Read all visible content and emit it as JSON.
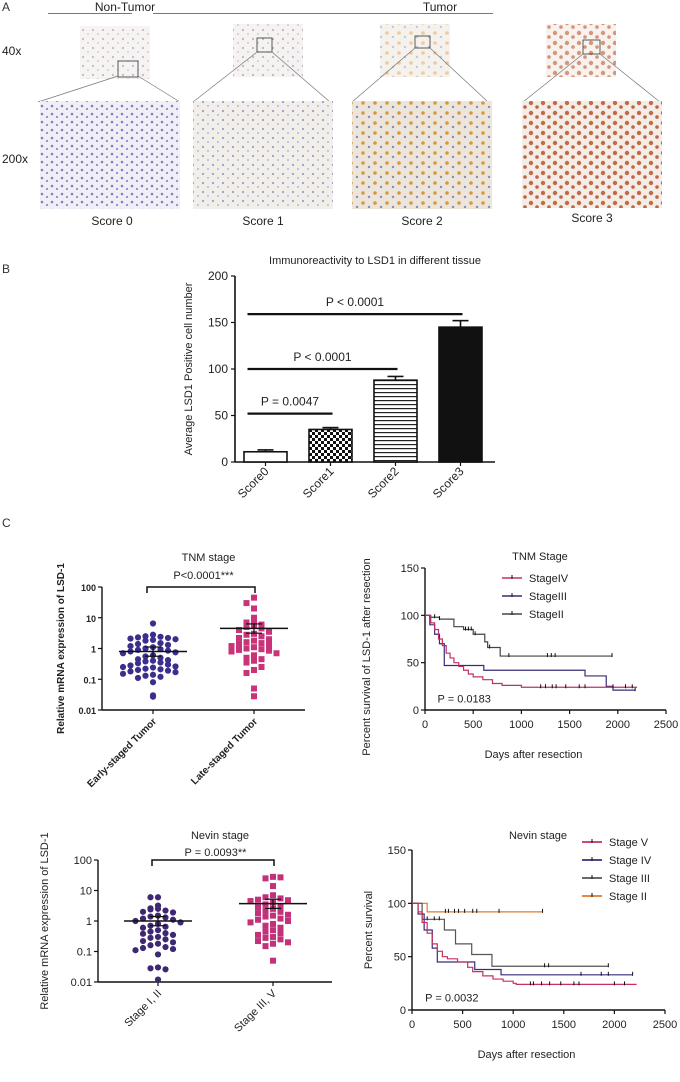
{
  "panel_a": {
    "letter": "A",
    "groups": [
      {
        "label": "Non-Tumor"
      },
      {
        "label": "Tumor"
      }
    ],
    "magnifications": [
      "40x",
      "200x"
    ],
    "scores": [
      {
        "label": "Score 0",
        "stain_color": "#7f80c0",
        "bg": "#eeeaf0"
      },
      {
        "label": "Score 1",
        "stain_color": "#9a9cc8",
        "bg": "#f0ece8"
      },
      {
        "label": "Score 2",
        "stain_color": "#d99a3c",
        "bg": "#ece6de"
      },
      {
        "label": "Score 3",
        "stain_color": "#c2683f",
        "bg": "#f2e8e2"
      }
    ]
  },
  "panel_b": {
    "letter": "B"
  },
  "panel_c": {
    "letter": "C"
  },
  "chart_data": [
    {
      "id": "lsd1-bar",
      "type": "bar",
      "title": "Immunoreactivity to LSD1 in different tissue",
      "xlabel": "",
      "ylabel": "Average LSD1 Positive cell number",
      "categories": [
        "Score0",
        "Score1",
        "Score2",
        "Score3"
      ],
      "values": [
        11,
        35,
        88,
        145
      ],
      "errors": [
        2,
        2,
        4,
        7
      ],
      "patterns": [
        "white",
        "checker",
        "hstripes",
        "solid"
      ],
      "ylim": [
        0,
        200
      ],
      "yticks": [
        0,
        50,
        100,
        150,
        200
      ],
      "significance": [
        {
          "from": 0,
          "to": 1,
          "y": 52,
          "label": "P = 0.0047"
        },
        {
          "from": 0,
          "to": 2,
          "y": 100,
          "label": "P < 0.0001"
        },
        {
          "from": 0,
          "to": 3,
          "y": 159,
          "label": "P < 0.0001"
        }
      ]
    },
    {
      "id": "tnm-scatter",
      "type": "scatter",
      "title": "TNM stage",
      "ylabel": "Relative mRNA expression of LSD-1",
      "yscale": "log",
      "ylim": [
        0.01,
        100
      ],
      "yticks": [
        "0.01",
        "0.1",
        "1",
        "10",
        "100"
      ],
      "categories": [
        "Early-staged Tumor",
        "Late-staged Tumor"
      ],
      "significance": "P<0.0001***",
      "series": [
        {
          "name": "Early-staged Tumor",
          "color": "#3a2f8e",
          "marker": "circle",
          "mean": 0.8,
          "values": [
            6.5,
            2.8,
            2.5,
            2.4,
            2.3,
            2.2,
            2.1,
            2.0,
            1.9,
            1.8,
            1.5,
            1.4,
            1.3,
            1.2,
            1.1,
            1.0,
            0.95,
            0.9,
            0.85,
            0.8,
            0.75,
            0.7,
            0.6,
            0.55,
            0.5,
            0.45,
            0.42,
            0.4,
            0.38,
            0.35,
            0.33,
            0.3,
            0.28,
            0.26,
            0.25,
            0.24,
            0.22,
            0.21,
            0.2,
            0.19,
            0.18,
            0.17,
            0.15,
            0.14,
            0.13,
            0.12,
            0.11,
            0.08,
            0.03,
            0.027
          ]
        },
        {
          "name": "Late-staged Tumor",
          "color": "#c8337a",
          "marker": "square",
          "mean": 4.5,
          "values": [
            45,
            30,
            20,
            10,
            8,
            7,
            6,
            5.5,
            5,
            4.5,
            4,
            3.5,
            3,
            2.8,
            2.5,
            2.2,
            2,
            1.8,
            1.6,
            1.5,
            1.4,
            1.3,
            1.2,
            1.1,
            1,
            0.95,
            0.9,
            0.85,
            0.8,
            0.7,
            0.6,
            0.5,
            0.45,
            0.4,
            0.35,
            0.25,
            0.2,
            0.16,
            0.05,
            0.028
          ]
        }
      ]
    },
    {
      "id": "tnm-survival",
      "type": "line",
      "title": "TNM Stage",
      "xlabel": "Days after resection",
      "ylabel": "Percent survival of LSD-1 after resection",
      "xlim": [
        0,
        2500
      ],
      "xticks": [
        0,
        500,
        1000,
        1500,
        2000,
        2500
      ],
      "ylim": [
        0,
        150
      ],
      "yticks": [
        0,
        50,
        100,
        150
      ],
      "annotation": "P = 0.0183",
      "legend": "top-right",
      "series": [
        {
          "name": "StageIV",
          "color": "#c0306a",
          "points": [
            [
              0,
              100
            ],
            [
              60,
              92
            ],
            [
              100,
              85
            ],
            [
              140,
              75
            ],
            [
              180,
              68
            ],
            [
              220,
              60
            ],
            [
              260,
              55
            ],
            [
              300,
              50
            ],
            [
              350,
              46
            ],
            [
              400,
              42
            ],
            [
              450,
              38
            ],
            [
              500,
              35
            ],
            [
              600,
              32
            ],
            [
              700,
              28
            ],
            [
              800,
              26
            ],
            [
              1000,
              24
            ],
            [
              2200,
              24
            ]
          ],
          "censors": [
            1200,
            1250,
            1320,
            1360,
            1460,
            1600,
            1660,
            1950,
            2080,
            2150
          ]
        },
        {
          "name": "StageIII",
          "color": "#3c2a78",
          "points": [
            [
              0,
              100
            ],
            [
              50,
              90
            ],
            [
              100,
              80
            ],
            [
              150,
              70
            ],
            [
              200,
              47
            ],
            [
              600,
              47
            ],
            [
              610,
              42
            ],
            [
              1650,
              42
            ],
            [
              1660,
              36
            ],
            [
              1870,
              36
            ],
            [
              1880,
              25
            ],
            [
              1940,
              25
            ],
            [
              1950,
              21
            ],
            [
              2180,
              21
            ]
          ],
          "censors": [
            2180
          ]
        },
        {
          "name": "StageII",
          "color": "#444444",
          "points": [
            [
              0,
              100
            ],
            [
              50,
              98
            ],
            [
              150,
              96
            ],
            [
              300,
              88
            ],
            [
              400,
              85
            ],
            [
              500,
              80
            ],
            [
              620,
              72
            ],
            [
              650,
              66
            ],
            [
              780,
              57
            ],
            [
              1940,
              57
            ]
          ],
          "censors": [
            100,
            150,
            420,
            450,
            480,
            520,
            670,
            870,
            1270,
            1310,
            1350,
            1940
          ]
        }
      ]
    },
    {
      "id": "nevin-scatter",
      "type": "scatter",
      "title": "Nevin stage",
      "ylabel": "Relative mRNA expression of LSD-1",
      "yscale": "log",
      "ylim": [
        0.01,
        100
      ],
      "yticks": [
        "0.01",
        "0.1",
        "1",
        "10",
        "100"
      ],
      "categories": [
        "Stage I, II",
        "Stage III, V"
      ],
      "significance": "P = 0.0093**",
      "series": [
        {
          "name": "Stage I, II",
          "color": "#3e2874",
          "marker": "circle",
          "mean": 1.0,
          "values": [
            6,
            6,
            3.2,
            2.6,
            2.5,
            2.4,
            2.2,
            2.0,
            1.9,
            1.5,
            1.4,
            1.3,
            1.2,
            1.1,
            1.0,
            0.9,
            0.8,
            0.7,
            0.65,
            0.6,
            0.5,
            0.45,
            0.4,
            0.38,
            0.35,
            0.3,
            0.28,
            0.25,
            0.22,
            0.2,
            0.18,
            0.16,
            0.14,
            0.13,
            0.12,
            0.11,
            0.08,
            0.03,
            0.028,
            0.026,
            0.012
          ]
        },
        {
          "name": "Stage III, V",
          "color": "#c2327a",
          "marker": "square",
          "mean": 3.7,
          "values": [
            28,
            25,
            27,
            14,
            7,
            6,
            5.5,
            5,
            4.8,
            4.5,
            4,
            3.5,
            3,
            2.8,
            2.5,
            2.2,
            2,
            1.8,
            1.6,
            1.5,
            1.4,
            1.2,
            1.1,
            1,
            0.9,
            0.8,
            0.7,
            0.6,
            0.5,
            0.45,
            0.4,
            0.35,
            0.3,
            0.28,
            0.25,
            0.22,
            0.2,
            0.18,
            0.15,
            0.05
          ]
        }
      ]
    },
    {
      "id": "nevin-survival",
      "type": "line",
      "title": "Nevin stage",
      "xlabel": "Days after resection",
      "ylabel": "Percent survival",
      "xlim": [
        0,
        2500
      ],
      "xticks": [
        0,
        500,
        1000,
        1500,
        2000,
        2500
      ],
      "ylim": [
        0,
        150
      ],
      "yticks": [
        0,
        50,
        100,
        150
      ],
      "annotation": "P = 0.0032",
      "legend": "top-right",
      "series": [
        {
          "name": "Stage V",
          "color": "#c8305c",
          "points": [
            [
              0,
              100
            ],
            [
              60,
              92
            ],
            [
              100,
              82
            ],
            [
              150,
              72
            ],
            [
              200,
              62
            ],
            [
              250,
              55
            ],
            [
              300,
              50
            ],
            [
              350,
              48
            ],
            [
              450,
              45
            ],
            [
              550,
              40
            ],
            [
              600,
              36
            ],
            [
              700,
              32
            ],
            [
              800,
              29
            ],
            [
              900,
              27
            ],
            [
              1000,
              25
            ],
            [
              1030,
              24
            ],
            [
              2220,
              24
            ]
          ],
          "censors": [
            1170,
            1200,
            1280,
            1360,
            1470,
            1600,
            1650,
            2000,
            2100
          ]
        },
        {
          "name": "Stage IV",
          "color": "#3b2a7c",
          "points": [
            [
              0,
              100
            ],
            [
              60,
              90
            ],
            [
              120,
              75
            ],
            [
              200,
              58
            ],
            [
              250,
              45
            ],
            [
              600,
              45
            ],
            [
              620,
              38
            ],
            [
              870,
              38
            ],
            [
              880,
              33
            ],
            [
              2180,
              33
            ]
          ],
          "censors": [
            1670,
            1870,
            1940,
            2180
          ]
        },
        {
          "name": "Stage III",
          "color": "#555555",
          "points": [
            [
              0,
              100
            ],
            [
              100,
              85
            ],
            [
              300,
              85
            ],
            [
              320,
              75
            ],
            [
              420,
              75
            ],
            [
              430,
              62
            ],
            [
              580,
              62
            ],
            [
              590,
              52
            ],
            [
              780,
              52
            ],
            [
              790,
              41
            ],
            [
              1940,
              41
            ]
          ],
          "censors": [
            150,
            220,
            270,
            1310,
            1350,
            1940
          ]
        },
        {
          "name": "Stage II",
          "color": "#e07a2a",
          "points": [
            [
              0,
              100
            ],
            [
              140,
              100
            ],
            [
              150,
              92
            ],
            [
              1290,
              92
            ]
          ],
          "censors": [
            330,
            360,
            420,
            460,
            520,
            600,
            640,
            860,
            1290
          ]
        }
      ]
    }
  ]
}
